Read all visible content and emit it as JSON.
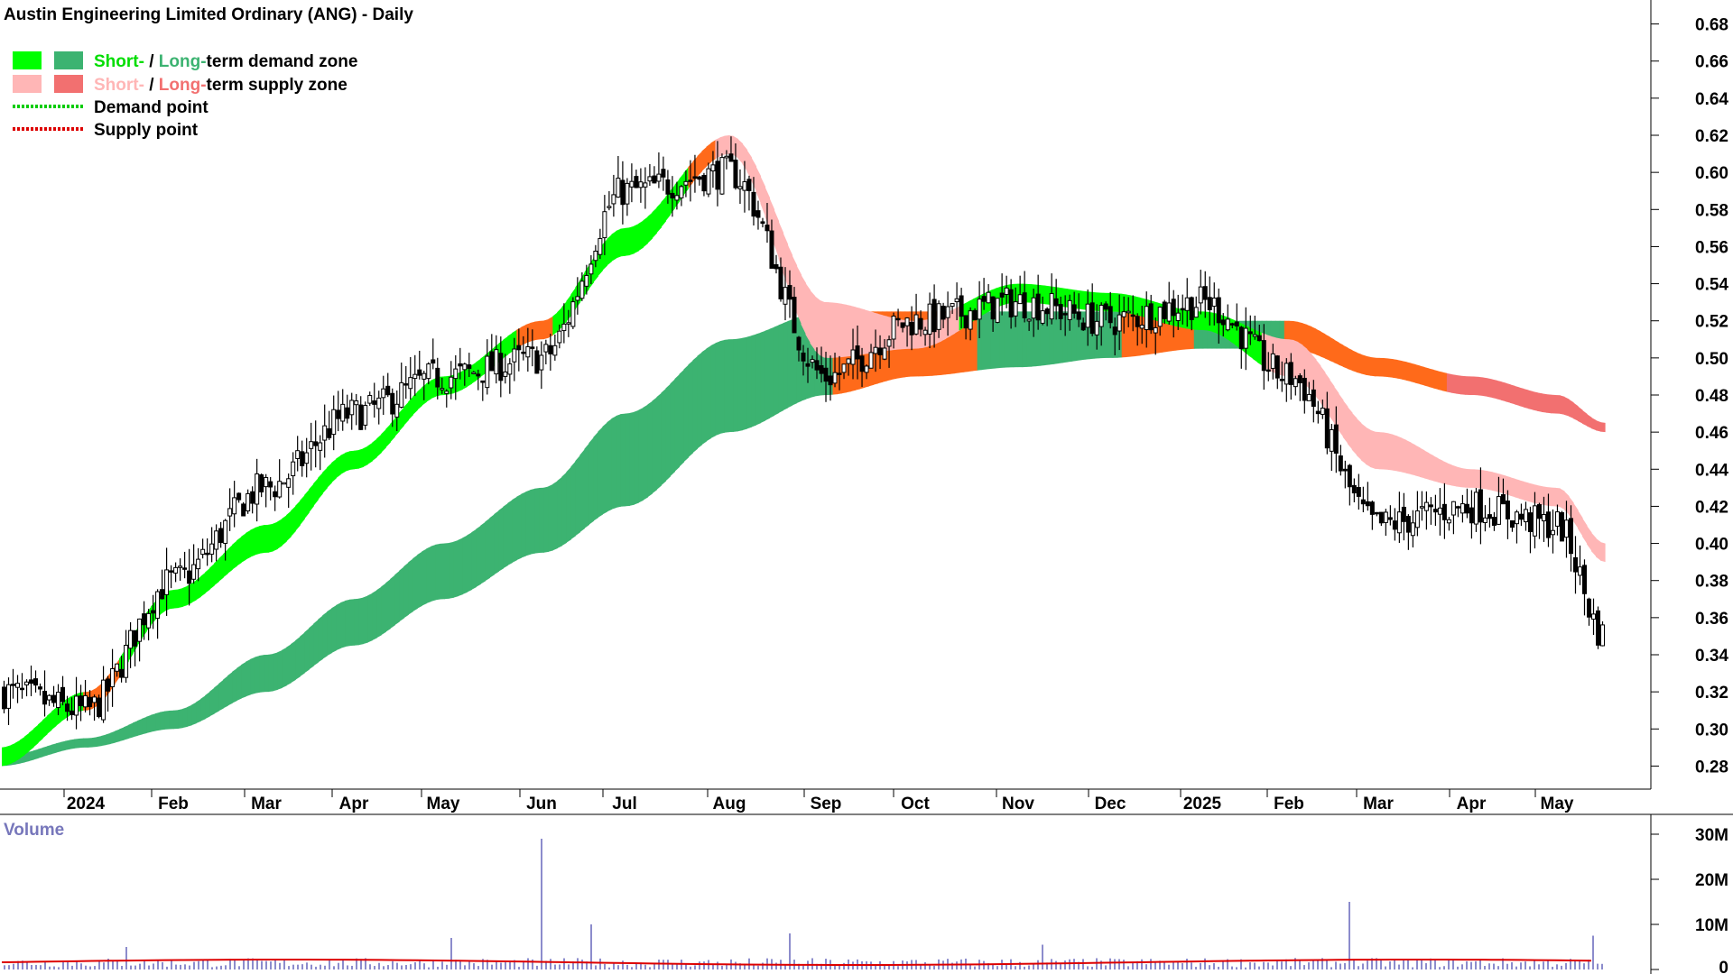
{
  "title": "Austin Engineering Limited Ordinary (ANG) - Daily",
  "legend": {
    "demand_zone": {
      "short": "Short-",
      "sep": " / ",
      "long": "Long-",
      "rest": "term demand zone"
    },
    "supply_zone": {
      "short": "Short-",
      "sep": " / ",
      "long": "Long-",
      "rest": "term supply zone"
    },
    "demand_point": "Demand point",
    "supply_point": "Supply point"
  },
  "colors": {
    "short_demand": "#00ff00",
    "long_demand": "#3cb371",
    "short_supply": "#ffb6b6",
    "long_supply": "#f27070",
    "crossover": "#ff6a1a",
    "demand_point": "#00cc00",
    "supply_point": "#dd0000",
    "volume_bar": "#6666bb",
    "volume_avg": "#dd0000"
  },
  "chart_data": [
    {
      "type": "candlestick",
      "title": "Austin Engineering Limited Ordinary (ANG) - Daily",
      "x_ticks": [
        "2024",
        "Feb",
        "Mar",
        "Apr",
        "May",
        "Jun",
        "Jul",
        "Aug",
        "Sep",
        "Oct",
        "Nov",
        "Dec",
        "2025",
        "Feb",
        "Mar",
        "Apr",
        "May"
      ],
      "y_ticks": [
        "0.68",
        "0.66",
        "0.64",
        "0.62",
        "0.60",
        "0.58",
        "0.56",
        "0.54",
        "0.52",
        "0.50",
        "0.48",
        "0.46",
        "0.44",
        "0.42",
        "0.40",
        "0.38",
        "0.36",
        "0.34",
        "0.32",
        "0.30",
        "0.28"
      ],
      "ylim": [
        0.27,
        0.69
      ],
      "grid": false,
      "legend_position": "top-left",
      "price_anchors": {
        "months": [
          "Dec",
          "2024",
          "Feb",
          "Mar",
          "Apr",
          "May",
          "Jun",
          "Jul",
          "Aug",
          "Sep",
          "Oct",
          "Nov",
          "Dec",
          "2025",
          "Feb",
          "Mar",
          "Apr",
          "May",
          "May-end"
        ],
        "close": [
          0.32,
          0.31,
          0.38,
          0.43,
          0.47,
          0.49,
          0.5,
          0.59,
          0.6,
          0.49,
          0.52,
          0.53,
          0.52,
          0.53,
          0.49,
          0.41,
          0.42,
          0.41,
          0.35
        ]
      },
      "short_term_zone_anchors": {
        "months": [
          "Dec",
          "2024",
          "Feb",
          "Mar",
          "Apr",
          "May",
          "Jun",
          "Jul",
          "Aug",
          "Sep",
          "Oct",
          "Nov",
          "Dec",
          "2025",
          "Feb",
          "Mar",
          "Apr",
          "May",
          "May-end"
        ],
        "upper": [
          0.29,
          0.32,
          0.375,
          0.41,
          0.45,
          0.49,
          0.52,
          0.57,
          0.62,
          0.53,
          0.52,
          0.54,
          0.535,
          0.525,
          0.51,
          0.46,
          0.44,
          0.43,
          0.4
        ],
        "lower": [
          0.28,
          0.31,
          0.365,
          0.395,
          0.44,
          0.48,
          0.51,
          0.555,
          0.61,
          0.5,
          0.505,
          0.53,
          0.525,
          0.515,
          0.49,
          0.44,
          0.43,
          0.42,
          0.39
        ]
      },
      "long_term_zone_anchors": {
        "months": [
          "Dec",
          "2024",
          "Feb",
          "Mar",
          "Apr",
          "May",
          "Jun",
          "Jul",
          "Aug",
          "Sep",
          "Oct",
          "Nov",
          "Dec",
          "2025",
          "Feb",
          "Mar",
          "Apr",
          "May",
          "May-end"
        ],
        "upper": [
          0.285,
          0.295,
          0.31,
          0.34,
          0.37,
          0.4,
          0.43,
          0.47,
          0.51,
          0.525,
          0.525,
          0.525,
          0.525,
          0.52,
          0.52,
          0.5,
          0.49,
          0.48,
          0.465
        ],
        "lower": [
          0.28,
          0.29,
          0.3,
          0.32,
          0.345,
          0.37,
          0.395,
          0.42,
          0.46,
          0.48,
          0.49,
          0.495,
          0.5,
          0.505,
          0.505,
          0.49,
          0.48,
          0.47,
          0.46
        ]
      }
    },
    {
      "type": "bar",
      "title": "Volume",
      "y_ticks": [
        "30M",
        "20M",
        "10M",
        "0"
      ],
      "ylim": [
        0,
        32000000
      ],
      "typical_volume": 1500000,
      "volume_spikes": [
        {
          "month": "Jun",
          "value": 29000000
        },
        {
          "month": "Mar",
          "value": 15000000
        },
        {
          "month": "Jul",
          "value": 10000000
        },
        {
          "month": "Aug",
          "value": 8000000
        },
        {
          "month": "May",
          "value": 7500000
        },
        {
          "month": "May",
          "value": 7000000
        },
        {
          "month": "Nov",
          "value": 5500000
        },
        {
          "month": "Feb",
          "value": 5000000
        }
      ],
      "moving_average": 2000000
    }
  ]
}
